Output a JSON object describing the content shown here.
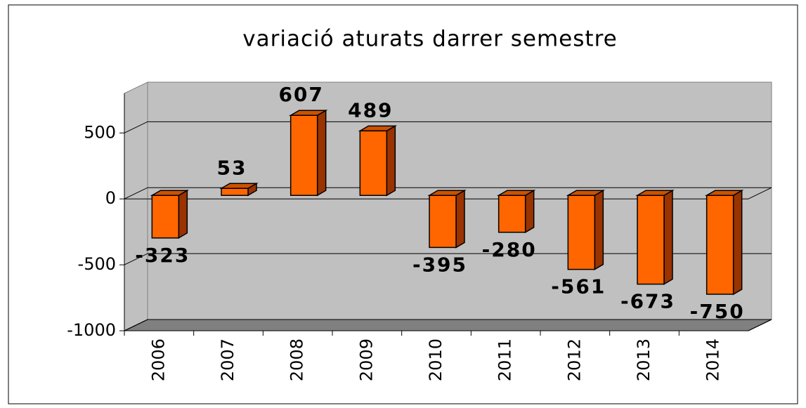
{
  "chart_data": {
    "type": "bar",
    "title": "variació aturats darrer semestre",
    "categories": [
      "2006",
      "2007",
      "2008",
      "2009",
      "2010",
      "2011",
      "2012",
      "2013",
      "2014"
    ],
    "values": [
      -323,
      53,
      607,
      489,
      -395,
      -280,
      -561,
      -673,
      -750
    ],
    "color": "#ff6600",
    "ylim": [
      -1000,
      800
    ],
    "yticks": [
      -1000,
      -500,
      0,
      500
    ],
    "grid": true
  }
}
